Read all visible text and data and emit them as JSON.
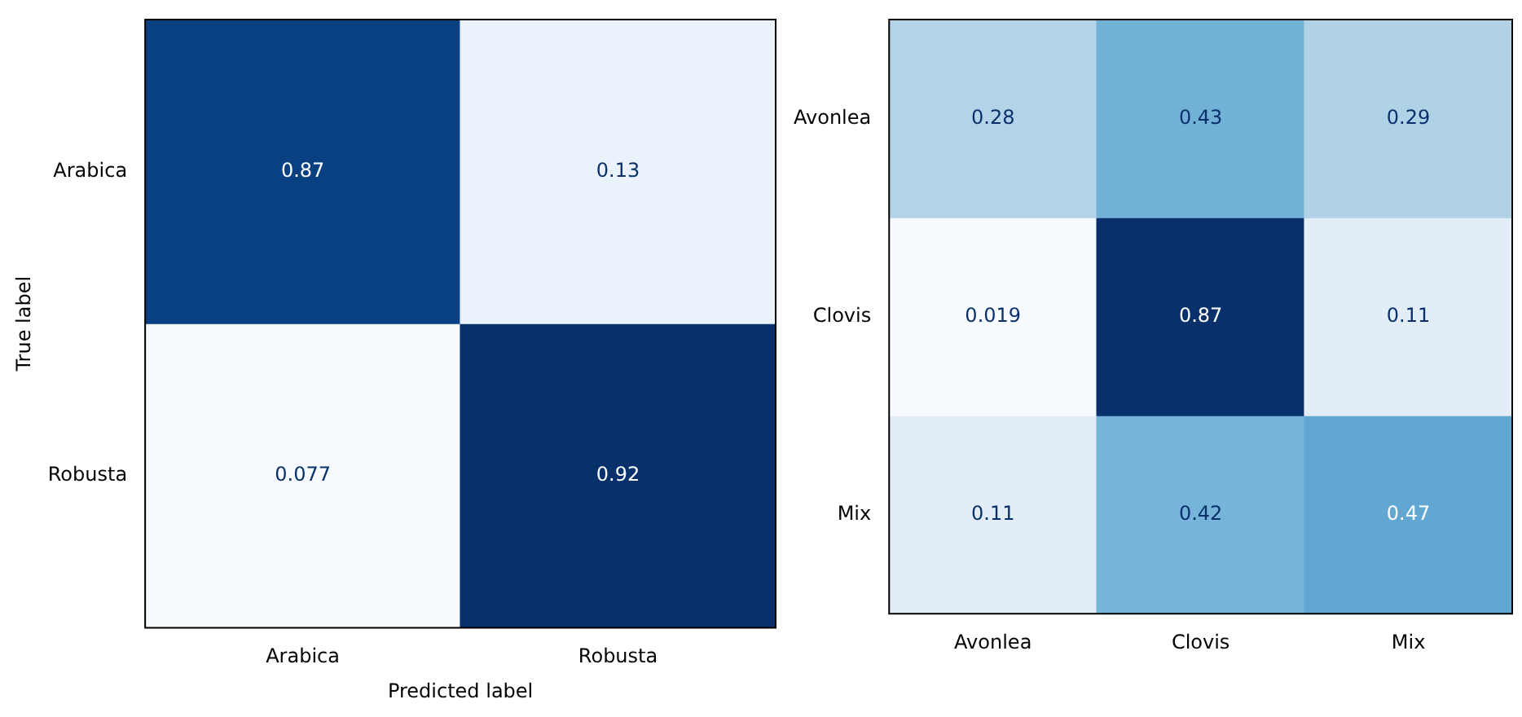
{
  "chart_data": [
    {
      "type": "heatmap",
      "xlabel": "Predicted label",
      "ylabel": "True label",
      "categories": [
        "Arabica",
        "Robusta"
      ],
      "y_categories": [
        "Arabica",
        "Robusta"
      ],
      "cells": [
        [
          0.87,
          0.13
        ],
        [
          0.077,
          0.92
        ]
      ],
      "data_labels": true
    },
    {
      "type": "heatmap",
      "categories": [
        "Avonlea",
        "Clovis",
        "Mix"
      ],
      "y_categories": [
        "Avonlea",
        "Clovis",
        "Mix"
      ],
      "cells": [
        [
          0.28,
          0.43,
          0.29
        ],
        [
          0.019,
          0.87,
          0.11
        ],
        [
          0.11,
          0.42,
          0.47
        ]
      ],
      "data_labels": true
    }
  ]
}
